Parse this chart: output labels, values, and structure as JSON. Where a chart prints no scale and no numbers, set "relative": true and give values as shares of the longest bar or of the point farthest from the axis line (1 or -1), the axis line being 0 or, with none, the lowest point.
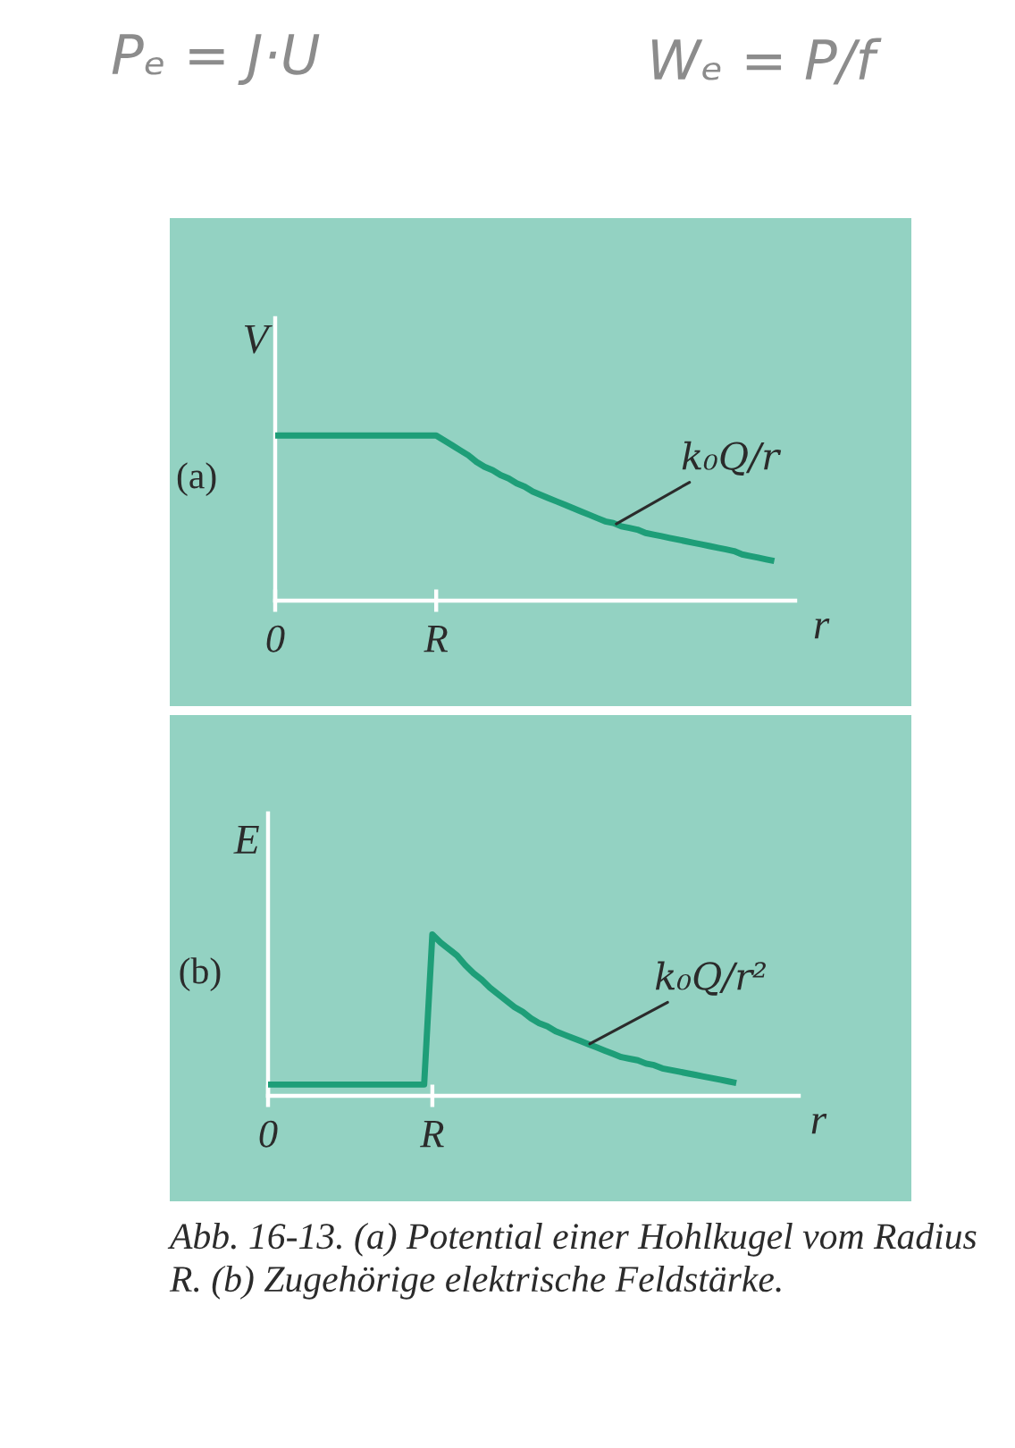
{
  "chart_data": [
    {
      "type": "line",
      "title": "(a)",
      "xlabel": "r",
      "ylabel": "V",
      "relative": true,
      "categories": [
        "0",
        null,
        null,
        null,
        null,
        null,
        null,
        null,
        null,
        null,
        null,
        null,
        null,
        null,
        null,
        null,
        null,
        null,
        null,
        null,
        "R",
        null,
        null,
        null,
        null,
        null,
        null,
        null,
        null,
        null,
        null,
        null,
        null,
        null,
        null,
        null,
        null,
        null,
        null,
        null,
        null,
        null,
        null,
        null,
        null,
        null,
        null,
        null,
        null,
        null,
        null,
        null,
        null,
        null,
        null,
        null,
        null,
        null,
        null,
        null,
        null,
        null,
        null,
        null,
        null
      ],
      "series": [
        {
          "color": "#1e9e78",
          "values": [
            1,
            1,
            1,
            1,
            1,
            1,
            1,
            1,
            1,
            1,
            1,
            1,
            1,
            1,
            1,
            1,
            1,
            1,
            1,
            1,
            1,
            0.97,
            0.94,
            0.91,
            0.88,
            0.84,
            0.81,
            0.79,
            0.76,
            0.74,
            0.71,
            0.69,
            0.66,
            0.64,
            0.62,
            0.6,
            0.58,
            0.56,
            0.54,
            0.52,
            0.5,
            0.48,
            0.47,
            0.45,
            0.44,
            0.43,
            0.41,
            0.4,
            0.39,
            0.38,
            0.37,
            0.36,
            0.35,
            0.34,
            0.33,
            0.32,
            0.31,
            0.3,
            0.28,
            0.27,
            0.26,
            0.25,
            0.24,
            null,
            null
          ]
        }
      ],
      "line_style": "solid",
      "annotations": [
        "k₀Q/r",
        "Pₑ = J·U",
        "Wₑ = P/f"
      ]
    },
    {
      "type": "line",
      "title": "(b)",
      "xlabel": "r",
      "ylabel": "E",
      "relative": true,
      "categories": [
        "0",
        null,
        null,
        null,
        null,
        null,
        null,
        null,
        null,
        null,
        null,
        null,
        null,
        null,
        null,
        null,
        null,
        null,
        null,
        null,
        "R",
        null,
        null,
        null,
        null,
        null,
        null,
        null,
        null,
        null,
        null,
        null,
        null,
        null,
        null,
        null,
        null,
        null,
        null,
        null,
        null,
        null,
        null,
        null,
        null,
        null,
        null,
        null,
        null,
        null,
        null,
        null,
        null,
        null,
        null,
        null,
        null,
        null,
        null,
        null,
        null,
        null,
        null,
        null,
        null
      ],
      "series": [
        {
          "color": "#1e9e78",
          "values": [
            0.07,
            0.07,
            0.07,
            0.07,
            0.07,
            0.07,
            0.07,
            0.07,
            0.07,
            0.07,
            0.07,
            0.07,
            0.07,
            0.07,
            0.07,
            0.07,
            0.07,
            0.07,
            0.07,
            0.07,
            1,
            0.95,
            0.91,
            0.87,
            0.81,
            0.76,
            0.72,
            0.67,
            0.63,
            0.59,
            0.55,
            0.52,
            0.48,
            0.45,
            0.43,
            0.4,
            0.38,
            0.36,
            0.34,
            0.32,
            0.3,
            0.28,
            0.26,
            0.24,
            0.23,
            0.22,
            0.2,
            0.19,
            0.17,
            0.16,
            0.15,
            0.14,
            0.13,
            0.12,
            0.11,
            0.1,
            0.09,
            0.08,
            null,
            null,
            null,
            null,
            null,
            null,
            null
          ]
        }
      ],
      "line_style": "solid",
      "annotations": [
        "k₀Q/r²",
        "Abb. 16-13. (a) Potential einer Hohlkugel vom Radius R. (b) Zugehörige elektrische Feldstärke."
      ]
    }
  ]
}
